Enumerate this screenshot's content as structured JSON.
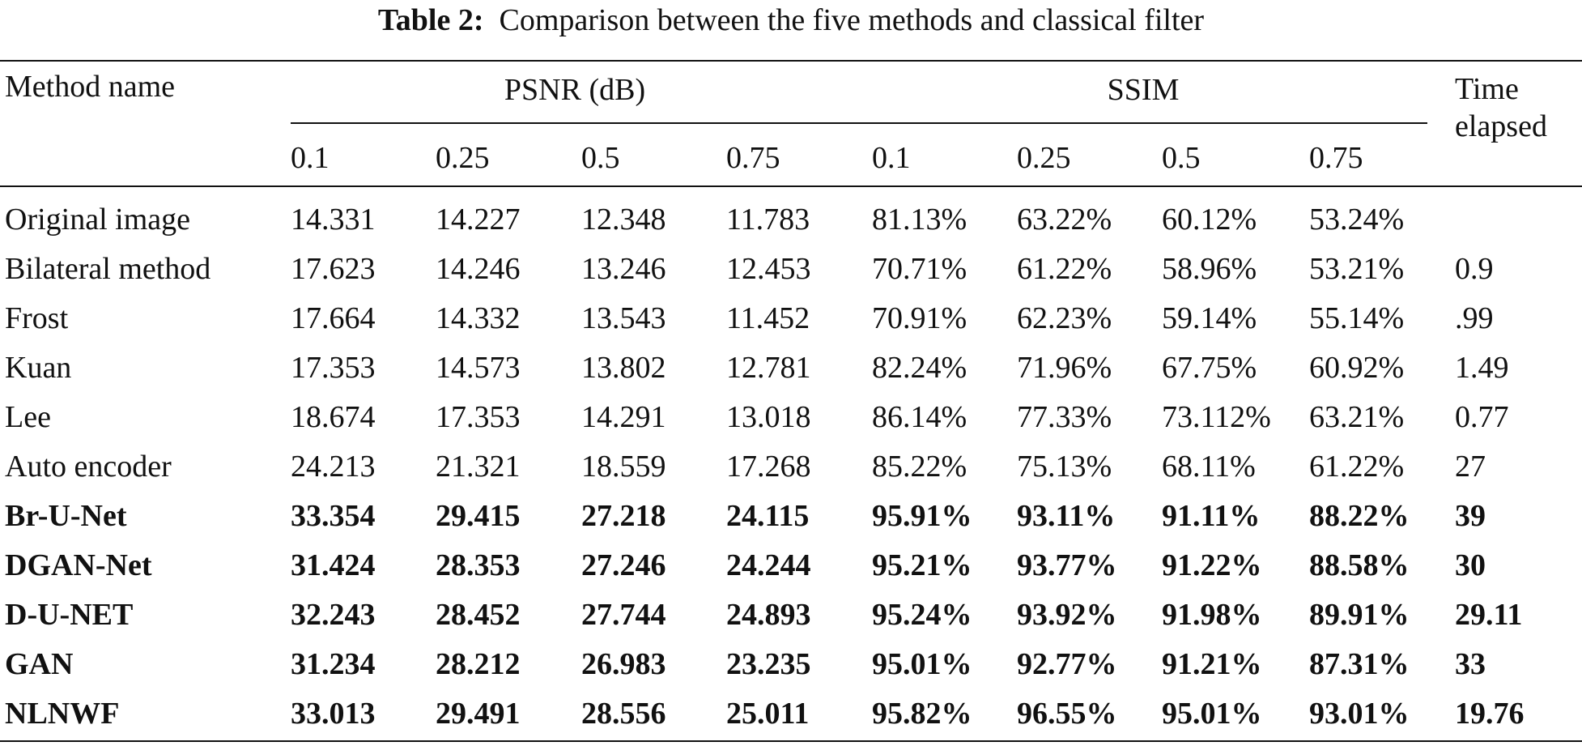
{
  "title": {
    "label": "Table 2:",
    "text": "Comparison between the five methods and classical filter"
  },
  "table": {
    "header": {
      "method": "Method name",
      "psnr": "PSNR (dB)",
      "ssim": "SSIM",
      "time": "Time elapsed",
      "sub": [
        "0.1",
        "0.25",
        "0.5",
        "0.75",
        "0.1",
        "0.25",
        "0.5",
        "0.75"
      ]
    },
    "rows": [
      {
        "cells": [
          "Original image",
          "14.331",
          "14.227",
          "12.348",
          "11.783",
          "81.13%",
          "63.22%",
          "60.12%",
          "53.24%",
          null
        ],
        "bold": false
      },
      {
        "cells": [
          "Bilateral method",
          "17.623",
          "14.246",
          "13.246",
          "12.453",
          "70.71%",
          "61.22%",
          "58.96%",
          "53.21%",
          "0.9"
        ],
        "bold": false
      },
      {
        "cells": [
          "Frost",
          "17.664",
          "14.332",
          "13.543",
          "11.452",
          "70.91%",
          "62.23%",
          "59.14%",
          "55.14%",
          ".99"
        ],
        "bold": false
      },
      {
        "cells": [
          "Kuan",
          "17.353",
          "14.573",
          "13.802",
          "12.781",
          "82.24%",
          "71.96%",
          "67.75%",
          "60.92%",
          "1.49"
        ],
        "bold": false
      },
      {
        "cells": [
          "Lee",
          "18.674",
          "17.353",
          "14.291",
          "13.018",
          "86.14%",
          "77.33%",
          "73.112%",
          "63.21%",
          "0.77"
        ],
        "bold": false
      },
      {
        "cells": [
          "Auto encoder",
          "24.213",
          "21.321",
          "18.559",
          "17.268",
          "85.22%",
          "75.13%",
          "68.11%",
          "61.22%",
          "27"
        ],
        "bold": false
      },
      {
        "cells": [
          "Br-U-Net",
          "33.354",
          "29.415",
          "27.218",
          "24.115",
          "95.91%",
          "93.11%",
          "91.11%",
          "88.22%",
          "39"
        ],
        "bold": true
      },
      {
        "cells": [
          "DGAN-Net",
          "31.424",
          "28.353",
          "27.246",
          "24.244",
          "95.21%",
          "93.77%",
          "91.22%",
          "88.58%",
          "30"
        ],
        "bold": true
      },
      {
        "cells": [
          "D-U-NET",
          "32.243",
          "28.452",
          "27.744",
          "24.893",
          "95.24%",
          "93.92%",
          "91.98%",
          "89.91%",
          "29.11"
        ],
        "bold": true
      },
      {
        "cells": [
          "GAN",
          "31.234",
          "28.212",
          "26.983",
          "23.235",
          "95.01%",
          "92.77%",
          "91.21%",
          "87.31%",
          "33"
        ],
        "bold": true
      },
      {
        "cells": [
          "NLNWF",
          "33.013",
          "29.491",
          "28.556",
          "25.011",
          "95.82%",
          "96.55%",
          "95.01%",
          "93.01%",
          "19.76"
        ],
        "bold": true
      }
    ]
  }
}
